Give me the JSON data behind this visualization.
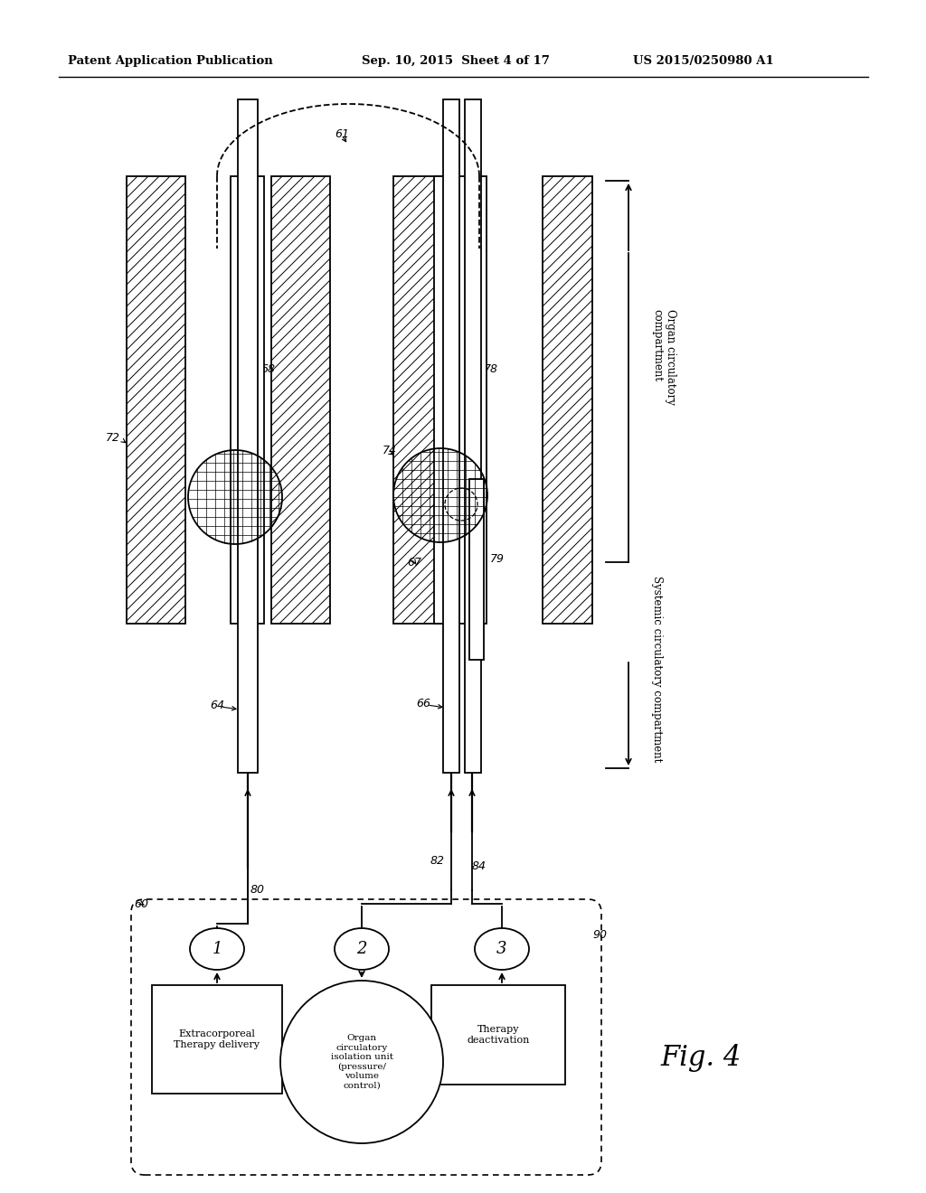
{
  "header_left": "Patent Application Publication",
  "header_mid": "Sep. 10, 2015  Sheet 4 of 17",
  "header_right": "US 2015/0250980 A1",
  "fig_label": "Fig. 4",
  "bg_color": "#ffffff",
  "lc": "#000000",
  "labels": {
    "organ_circ": "Organ circulatory\ncompartment",
    "sys_circ": "Systemic circulatory compartment",
    "box1_text": "Extracorporeal\nTherapy delivery",
    "box2_text": "Organ\ncirculatory\nisolation unit\n(pressure/\nvolume\ncontrol)",
    "box3_text": "Therapy\ndeactivation"
  }
}
